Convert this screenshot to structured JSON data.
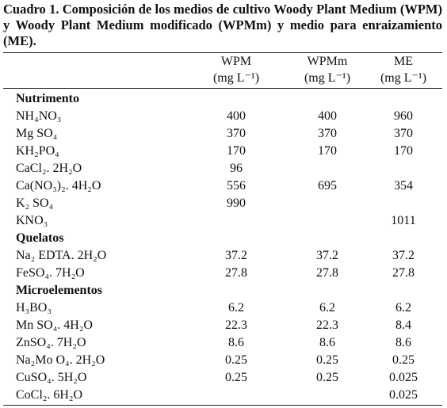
{
  "title": "Cuadro 1. Composición de los medios de cultivo Woody Plant Medium (WPM) y Woody Plant Medium modificado (WPMm) y medio para enraizamiento (ME).",
  "table": {
    "columns": [
      [
        "WPM",
        "(mg L⁻¹)"
      ],
      [
        "WPMm",
        "(mg L⁻¹)"
      ],
      [
        "ME",
        "(mg L⁻¹)"
      ]
    ],
    "sections": [
      {
        "heading": "Nutrimento",
        "rows": [
          [
            "NH₄NO₃",
            "400",
            "400",
            "960"
          ],
          [
            "Mg SO₄",
            "370",
            "370",
            "370"
          ],
          [
            "KH₂PO₄",
            "170",
            "170",
            "170"
          ],
          [
            "CaCl₂. 2H₂O",
            "96",
            null,
            null
          ],
          [
            "Ca(NO₃)₂. 4H₂O",
            "556",
            "695",
            "354"
          ],
          [
            "K₂ SO₄",
            "990",
            null,
            null
          ],
          [
            "KNO₃",
            null,
            null,
            "1011"
          ]
        ]
      },
      {
        "heading": "Quelatos",
        "rows": [
          [
            "Na₂ EDTA. 2H₂O",
            "37.2",
            "37.2",
            "37.2"
          ],
          [
            "FeSO₄. 7H₂O",
            "27.8",
            "27.8",
            "27.8"
          ]
        ]
      },
      {
        "heading": "Microelementos",
        "rows": [
          [
            "H₃BO₃",
            "6.2",
            "6.2",
            "6.2"
          ],
          [
            "Mn SO₄. 4H₂O",
            "22.3",
            "22.3",
            "8.4"
          ],
          [
            "ZnSO₄. 7H₂O",
            "8.6",
            "8.6",
            "8.6"
          ],
          [
            "Na₂Mo O₄. 2H₂O",
            "0.25",
            "0.25",
            "0.25"
          ],
          [
            "CuSO₄. 5H₂O",
            "0.25",
            "0.25",
            "0.025"
          ],
          [
            "CoCl₂. 6H₂O",
            null,
            null,
            "0.025"
          ]
        ]
      }
    ]
  }
}
